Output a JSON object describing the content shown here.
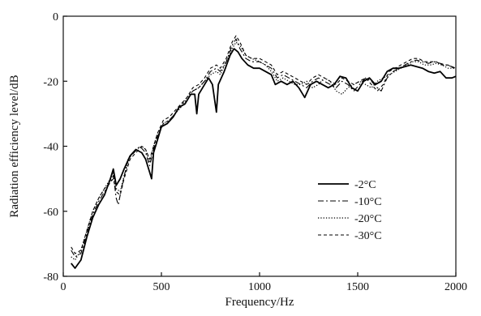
{
  "chart_data": {
    "type": "line",
    "title": "",
    "xlabel": "Frequency/Hz",
    "ylabel": "Radiation efficiency level/dB",
    "xlim": [
      0,
      2000
    ],
    "ylim": [
      -80,
      0
    ],
    "x_ticks": [
      0,
      500,
      1000,
      1500,
      2000
    ],
    "y_ticks": [
      -80,
      -60,
      -40,
      -20,
      0
    ],
    "x_tick_labels": [
      "0",
      "500",
      "1000",
      "1500",
      "2000"
    ],
    "y_tick_labels": [
      "-80",
      "-60",
      "-40",
      "-20",
      "0"
    ],
    "grid": false,
    "legend_position": "lower-right",
    "series": [
      {
        "name": "-2°C",
        "style": "solid",
        "color": "#000000",
        "points": [
          [
            40,
            -76
          ],
          [
            60,
            -77.5
          ],
          [
            90,
            -75
          ],
          [
            120,
            -68
          ],
          [
            150,
            -62
          ],
          [
            180,
            -58
          ],
          [
            210,
            -55
          ],
          [
            240,
            -50
          ],
          [
            255,
            -47
          ],
          [
            270,
            -52
          ],
          [
            290,
            -50
          ],
          [
            310,
            -47
          ],
          [
            340,
            -43
          ],
          [
            370,
            -41
          ],
          [
            400,
            -42
          ],
          [
            420,
            -44
          ],
          [
            440,
            -48
          ],
          [
            450,
            -50
          ],
          [
            460,
            -42
          ],
          [
            480,
            -38
          ],
          [
            500,
            -34
          ],
          [
            530,
            -33
          ],
          [
            560,
            -31
          ],
          [
            590,
            -28
          ],
          [
            620,
            -27
          ],
          [
            650,
            -24
          ],
          [
            670,
            -24
          ],
          [
            680,
            -30
          ],
          [
            690,
            -24
          ],
          [
            720,
            -21
          ],
          [
            740,
            -19
          ],
          [
            760,
            -21
          ],
          [
            780,
            -29.5
          ],
          [
            790,
            -21
          ],
          [
            820,
            -17
          ],
          [
            850,
            -12
          ],
          [
            870,
            -10
          ],
          [
            890,
            -11
          ],
          [
            910,
            -13
          ],
          [
            940,
            -15
          ],
          [
            970,
            -16
          ],
          [
            1000,
            -16
          ],
          [
            1030,
            -17
          ],
          [
            1060,
            -18
          ],
          [
            1080,
            -21
          ],
          [
            1110,
            -20
          ],
          [
            1140,
            -21
          ],
          [
            1170,
            -20
          ],
          [
            1200,
            -22
          ],
          [
            1230,
            -25
          ],
          [
            1260,
            -21
          ],
          [
            1290,
            -20
          ],
          [
            1320,
            -21
          ],
          [
            1350,
            -22
          ],
          [
            1380,
            -21
          ],
          [
            1410,
            -18.5
          ],
          [
            1440,
            -19
          ],
          [
            1470,
            -22
          ],
          [
            1500,
            -23
          ],
          [
            1530,
            -20
          ],
          [
            1560,
            -19
          ],
          [
            1590,
            -21
          ],
          [
            1620,
            -20
          ],
          [
            1650,
            -17
          ],
          [
            1680,
            -16
          ],
          [
            1710,
            -16
          ],
          [
            1740,
            -15.5
          ],
          [
            1770,
            -15
          ],
          [
            1800,
            -15.5
          ],
          [
            1830,
            -16
          ],
          [
            1860,
            -17
          ],
          [
            1890,
            -17.5
          ],
          [
            1920,
            -17
          ],
          [
            1950,
            -19
          ],
          [
            1980,
            -19
          ],
          [
            2000,
            -18.5
          ]
        ]
      },
      {
        "name": "-10°C",
        "style": "dash-dot",
        "color": "#000000",
        "points": [
          [
            40,
            -72
          ],
          [
            60,
            -74
          ],
          [
            90,
            -73
          ],
          [
            120,
            -67
          ],
          [
            150,
            -61
          ],
          [
            180,
            -57
          ],
          [
            210,
            -54
          ],
          [
            240,
            -51
          ],
          [
            255,
            -49
          ],
          [
            270,
            -56
          ],
          [
            280,
            -58
          ],
          [
            300,
            -52
          ],
          [
            330,
            -44
          ],
          [
            360,
            -42
          ],
          [
            390,
            -40
          ],
          [
            420,
            -42
          ],
          [
            440,
            -46
          ],
          [
            460,
            -41
          ],
          [
            480,
            -37
          ],
          [
            510,
            -33
          ],
          [
            540,
            -32
          ],
          [
            570,
            -30
          ],
          [
            600,
            -27
          ],
          [
            630,
            -26
          ],
          [
            660,
            -23
          ],
          [
            690,
            -22
          ],
          [
            720,
            -20
          ],
          [
            750,
            -17
          ],
          [
            780,
            -16
          ],
          [
            800,
            -17
          ],
          [
            830,
            -14
          ],
          [
            860,
            -9
          ],
          [
            880,
            -7
          ],
          [
            900,
            -10
          ],
          [
            930,
            -13
          ],
          [
            960,
            -14
          ],
          [
            1000,
            -14
          ],
          [
            1030,
            -15
          ],
          [
            1060,
            -16
          ],
          [
            1090,
            -19
          ],
          [
            1120,
            -18
          ],
          [
            1150,
            -19
          ],
          [
            1180,
            -20
          ],
          [
            1210,
            -21
          ],
          [
            1240,
            -22
          ],
          [
            1270,
            -20
          ],
          [
            1300,
            -19
          ],
          [
            1330,
            -20
          ],
          [
            1360,
            -21
          ],
          [
            1390,
            -22
          ],
          [
            1420,
            -20
          ],
          [
            1450,
            -21
          ],
          [
            1480,
            -23
          ],
          [
            1510,
            -21
          ],
          [
            1540,
            -19
          ],
          [
            1570,
            -20
          ],
          [
            1600,
            -22
          ],
          [
            1620,
            -23
          ],
          [
            1650,
            -19
          ],
          [
            1680,
            -17
          ],
          [
            1710,
            -16
          ],
          [
            1740,
            -15
          ],
          [
            1770,
            -14
          ],
          [
            1800,
            -13.5
          ],
          [
            1830,
            -14
          ],
          [
            1860,
            -14.5
          ],
          [
            1890,
            -14
          ],
          [
            1920,
            -14.5
          ],
          [
            1950,
            -15
          ],
          [
            1980,
            -15.5
          ],
          [
            2000,
            -16
          ]
        ]
      },
      {
        "name": "-20°C",
        "style": "dotted",
        "color": "#000000",
        "points": [
          [
            40,
            -74
          ],
          [
            60,
            -75
          ],
          [
            90,
            -72
          ],
          [
            120,
            -66
          ],
          [
            150,
            -60
          ],
          [
            180,
            -56
          ],
          [
            210,
            -53
          ],
          [
            240,
            -50
          ],
          [
            255,
            -48
          ],
          [
            270,
            -53
          ],
          [
            290,
            -54
          ],
          [
            310,
            -49
          ],
          [
            340,
            -43
          ],
          [
            370,
            -41
          ],
          [
            400,
            -40
          ],
          [
            420,
            -41
          ],
          [
            440,
            -45
          ],
          [
            460,
            -40
          ],
          [
            480,
            -36
          ],
          [
            510,
            -33
          ],
          [
            540,
            -32
          ],
          [
            570,
            -30
          ],
          [
            600,
            -28
          ],
          [
            630,
            -25
          ],
          [
            660,
            -23
          ],
          [
            690,
            -22
          ],
          [
            720,
            -20
          ],
          [
            750,
            -18
          ],
          [
            780,
            -17
          ],
          [
            800,
            -18
          ],
          [
            830,
            -14
          ],
          [
            860,
            -10
          ],
          [
            880,
            -8
          ],
          [
            900,
            -9
          ],
          [
            930,
            -12
          ],
          [
            960,
            -13
          ],
          [
            1000,
            -14
          ],
          [
            1030,
            -15
          ],
          [
            1060,
            -17
          ],
          [
            1090,
            -20
          ],
          [
            1120,
            -19
          ],
          [
            1150,
            -20
          ],
          [
            1180,
            -21
          ],
          [
            1210,
            -21
          ],
          [
            1240,
            -20
          ],
          [
            1270,
            -22
          ],
          [
            1300,
            -21
          ],
          [
            1330,
            -19
          ],
          [
            1360,
            -20
          ],
          [
            1390,
            -23
          ],
          [
            1420,
            -24
          ],
          [
            1450,
            -22
          ],
          [
            1480,
            -21
          ],
          [
            1510,
            -20
          ],
          [
            1540,
            -21
          ],
          [
            1570,
            -22
          ],
          [
            1600,
            -20
          ],
          [
            1630,
            -19
          ],
          [
            1660,
            -18
          ],
          [
            1690,
            -17
          ],
          [
            1720,
            -16
          ],
          [
            1750,
            -15
          ],
          [
            1780,
            -14
          ],
          [
            1810,
            -14
          ],
          [
            1840,
            -15
          ],
          [
            1870,
            -15
          ],
          [
            1900,
            -14.5
          ],
          [
            1930,
            -15
          ],
          [
            1960,
            -16
          ],
          [
            1990,
            -16
          ],
          [
            2000,
            -16
          ]
        ]
      },
      {
        "name": "-30°C",
        "style": "dashed",
        "color": "#000000",
        "points": [
          [
            40,
            -71
          ],
          [
            60,
            -73
          ],
          [
            90,
            -72
          ],
          [
            120,
            -66
          ],
          [
            150,
            -60
          ],
          [
            180,
            -56
          ],
          [
            210,
            -53
          ],
          [
            240,
            -51
          ],
          [
            255,
            -50
          ],
          [
            270,
            -54
          ],
          [
            290,
            -55
          ],
          [
            310,
            -50
          ],
          [
            340,
            -44
          ],
          [
            370,
            -42
          ],
          [
            400,
            -40
          ],
          [
            420,
            -41
          ],
          [
            440,
            -44
          ],
          [
            460,
            -40
          ],
          [
            480,
            -36
          ],
          [
            510,
            -32
          ],
          [
            540,
            -31
          ],
          [
            570,
            -29
          ],
          [
            600,
            -27
          ],
          [
            630,
            -25
          ],
          [
            660,
            -22
          ],
          [
            690,
            -21
          ],
          [
            720,
            -19
          ],
          [
            750,
            -16
          ],
          [
            780,
            -15
          ],
          [
            800,
            -16
          ],
          [
            830,
            -13
          ],
          [
            860,
            -8
          ],
          [
            880,
            -6
          ],
          [
            900,
            -8
          ],
          [
            930,
            -12
          ],
          [
            960,
            -13
          ],
          [
            1000,
            -13
          ],
          [
            1030,
            -14
          ],
          [
            1060,
            -15
          ],
          [
            1090,
            -18
          ],
          [
            1120,
            -17
          ],
          [
            1150,
            -18
          ],
          [
            1180,
            -19
          ],
          [
            1210,
            -20
          ],
          [
            1240,
            -21
          ],
          [
            1270,
            -19
          ],
          [
            1300,
            -18
          ],
          [
            1330,
            -19
          ],
          [
            1360,
            -20
          ],
          [
            1390,
            -21
          ],
          [
            1420,
            -19
          ],
          [
            1450,
            -20
          ],
          [
            1480,
            -21
          ],
          [
            1510,
            -20
          ],
          [
            1540,
            -19
          ],
          [
            1570,
            -21
          ],
          [
            1600,
            -23
          ],
          [
            1630,
            -21
          ],
          [
            1660,
            -17
          ],
          [
            1690,
            -16
          ],
          [
            1720,
            -15
          ],
          [
            1750,
            -14
          ],
          [
            1780,
            -13
          ],
          [
            1810,
            -13
          ],
          [
            1840,
            -14
          ],
          [
            1870,
            -14
          ],
          [
            1900,
            -14
          ],
          [
            1930,
            -15
          ],
          [
            1960,
            -15
          ],
          [
            1990,
            -16
          ],
          [
            2000,
            -16
          ]
        ]
      }
    ]
  }
}
